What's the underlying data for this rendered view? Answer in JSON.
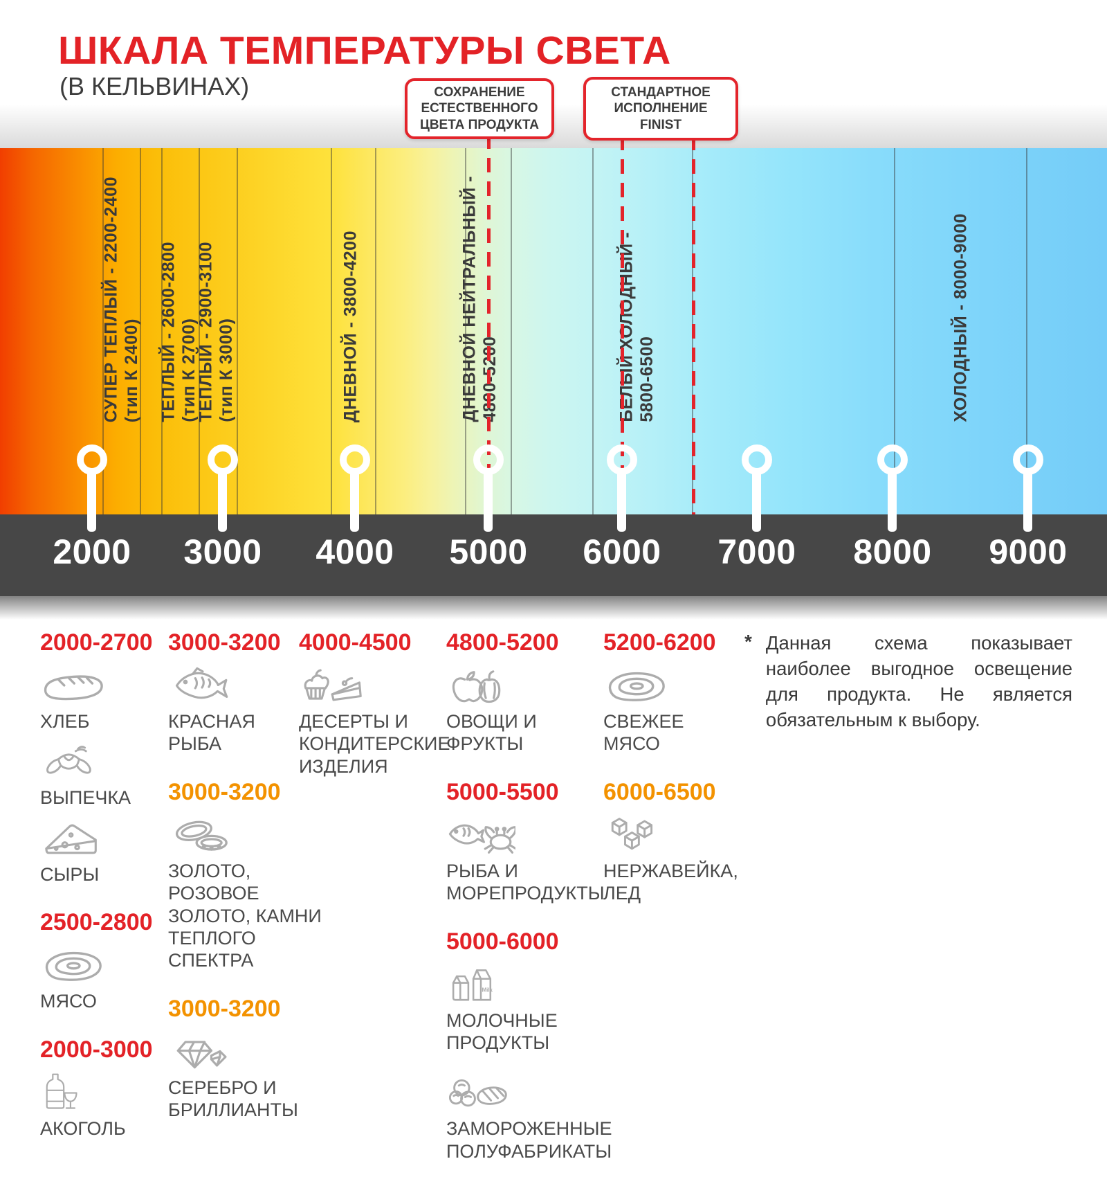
{
  "header": {
    "title": "ШКАЛА ТЕМПЕРАТУРЫ СВЕТА",
    "subtitle": "(В КЕЛЬВИНАХ)"
  },
  "callouts": [
    {
      "text": "СОХРАНЕНИЕ\nЕСТЕСТВЕННОГО\nЦВЕТА ПРОДУКТА"
    },
    {
      "text": "СТАНДАРТНОЕ\nИСПОЛНЕНИЕ\nFINIST"
    }
  ],
  "scale": {
    "zones": [
      {
        "label": "СУПЕР ТЕПЛЫЙ  - 2200-2400",
        "sub": "(тип К 2400)"
      },
      {
        "label": "ТЕПЛЫЙ - 2600-2800",
        "sub": "(тип К 2700)"
      },
      {
        "label": "ТЕПЛЫЙ - 2900-3100",
        "sub": "(тип К 3000)"
      },
      {
        "label": "ДНЕВНОЙ  - 3800-4200",
        "sub": ""
      },
      {
        "label": "ДНЕВНОЙ НЕЙТРАЛЬНЫЙ -",
        "sub": "4800-5200"
      },
      {
        "label": "БЕЛЫЙ ХОЛОДНЫЙ -",
        "sub": "5800-6500"
      },
      {
        "label": "ХОЛОДНЫЙ  - 8000-9000",
        "sub": ""
      }
    ],
    "ticks": [
      "2000",
      "3000",
      "4000",
      "5000",
      "6000",
      "7000",
      "8000",
      "9000"
    ]
  },
  "categories": [
    {
      "groups": [
        {
          "range": "2000-2700",
          "color": "red",
          "items": [
            {
              "icon": "bread-icon",
              "label": "ХЛЕБ"
            },
            {
              "icon": "croissant-icon",
              "label": "ВЫПЕЧКА"
            },
            {
              "icon": "cheese-icon",
              "label": "СЫРЫ"
            }
          ]
        },
        {
          "range": "2500-2800",
          "color": "red",
          "items": [
            {
              "icon": "steak-icon",
              "label": "МЯСО"
            }
          ]
        },
        {
          "range": "2000-3000",
          "color": "red",
          "items": [
            {
              "icon": "alcohol-icon",
              "label": "АКОГОЛЬ"
            }
          ]
        }
      ]
    },
    {
      "groups": [
        {
          "range": "3000-3200",
          "color": "red",
          "items": [
            {
              "icon": "fish-icon",
              "label": "КРАСНАЯ РЫБА"
            }
          ]
        },
        {
          "range": "3000-3200",
          "color": "orange",
          "items": [
            {
              "icon": "rings-icon",
              "label": "ЗОЛОТО, РОЗОВОЕ ЗОЛОТО, КАМНИ ТЕПЛОГО СПЕКТРА"
            }
          ]
        },
        {
          "range": "3000-3200",
          "color": "orange",
          "items": [
            {
              "icon": "diamonds-icon",
              "label": "СЕРЕБРО И БРИЛЛИАНТЫ"
            }
          ]
        }
      ]
    },
    {
      "groups": [
        {
          "range": "4000-4500",
          "color": "red",
          "items": [
            {
              "icon": "desserts-icon",
              "label": "ДЕСЕРТЫ И КОНДИТЕРСКИЕ ИЗДЕЛИЯ"
            }
          ]
        }
      ]
    },
    {
      "groups": [
        {
          "range": "4800-5200",
          "color": "red",
          "items": [
            {
              "icon": "vegetables-icon",
              "label": "ОВОЩИ И ФРУКТЫ"
            }
          ]
        },
        {
          "range": "5000-5500",
          "color": "red",
          "items": [
            {
              "icon": "seafood-icon",
              "label": "РЫБА И МОРЕПРОДУКТЫ"
            }
          ]
        },
        {
          "range": "5000-6000",
          "color": "red",
          "items": [
            {
              "icon": "milk-icon",
              "label": "МОЛОЧНЫЕ ПРОДУКТЫ"
            },
            {
              "icon": "frozen-icon",
              "label": "ЗАМОРОЖЕННЫЕ ПОЛУФАБРИКАТЫ"
            }
          ]
        }
      ]
    },
    {
      "groups": [
        {
          "range": "5200-6200",
          "color": "red",
          "items": [
            {
              "icon": "steak-icon",
              "label": "СВЕЖЕЕ МЯСО"
            }
          ]
        },
        {
          "range": "6000-6500",
          "color": "orange",
          "items": [
            {
              "icon": "ice-icon",
              "label": "НЕРЖАВЕЙКА, ЛЕД"
            }
          ]
        }
      ]
    }
  ],
  "footnote": {
    "marker": "*",
    "text": "Данная схема показывает наиболее выгодное освещение для продукта. Не является обязательным к выбору."
  },
  "colors": {
    "accent_red": "#e32227",
    "accent_orange": "#f39200",
    "axis_band": "#474747",
    "icon_gray": "#acacac",
    "callout_border": "#e3242b"
  }
}
